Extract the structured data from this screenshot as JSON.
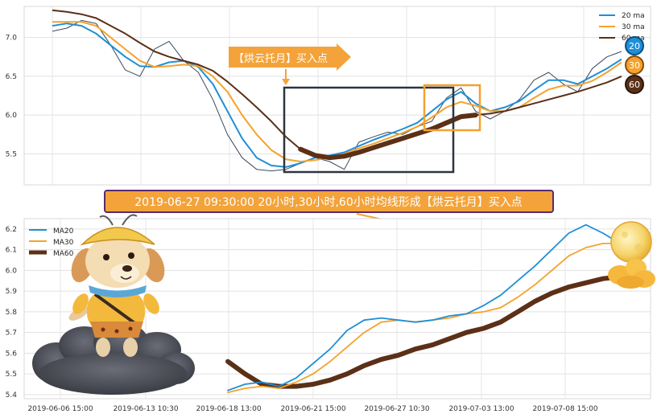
{
  "chart_data": [
    {
      "type": "line",
      "panel": "top",
      "ylim": [
        5.1,
        7.4
      ],
      "y_ticks": [
        "5.5",
        "6.0",
        "6.5",
        "7.0"
      ],
      "grid": true,
      "legend": {
        "placement": "top-right",
        "entries": [
          "20 ma",
          "30 ma",
          "60 ma"
        ]
      },
      "annotation": "【烘云托月】买入点",
      "badges": [
        "20",
        "30",
        "60"
      ],
      "colors": {
        "price": "#3b4a5e",
        "ma20": "#1f8fd6",
        "ma30": "#f4a22d",
        "ma60": "#5b3017",
        "box_dark": "#2e3440",
        "box_orange": "#f4a22d"
      },
      "series": [
        {
          "name": "20 ma",
          "values": [
            7.15,
            7.18,
            7.15,
            7.05,
            6.9,
            6.75,
            6.63,
            6.62,
            6.68,
            6.7,
            6.62,
            6.4,
            6.05,
            5.7,
            5.45,
            5.35,
            5.33,
            5.38,
            5.45,
            5.48,
            5.52,
            5.6,
            5.68,
            5.75,
            5.82,
            5.9,
            6.05,
            6.2,
            6.3,
            6.15,
            6.05,
            6.1,
            6.18,
            6.32,
            6.45,
            6.45,
            6.4,
            6.5,
            6.6,
            6.72
          ]
        },
        {
          "name": "30 ma",
          "values": [
            7.2,
            7.2,
            7.2,
            7.15,
            7.0,
            6.85,
            6.7,
            6.62,
            6.63,
            6.65,
            6.63,
            6.5,
            6.3,
            6.0,
            5.75,
            5.55,
            5.43,
            5.4,
            5.42,
            5.45,
            5.5,
            5.57,
            5.63,
            5.7,
            5.77,
            5.85,
            5.97,
            6.1,
            6.17,
            6.12,
            6.05,
            6.05,
            6.1,
            6.22,
            6.33,
            6.38,
            6.38,
            6.44,
            6.55,
            6.68
          ]
        },
        {
          "name": "60 ma",
          "values": [
            7.35,
            7.33,
            7.3,
            7.25,
            7.15,
            7.05,
            6.93,
            6.82,
            6.75,
            6.7,
            6.65,
            6.57,
            6.43,
            6.27,
            6.1,
            5.92,
            5.72,
            5.56,
            5.48,
            5.45,
            5.47,
            5.52,
            5.58,
            5.64,
            5.7,
            5.76,
            5.82,
            5.9,
            5.98,
            6.0,
            6.02,
            6.05,
            6.1,
            6.15,
            6.2,
            6.25,
            6.3,
            6.36,
            6.42,
            6.5
          ]
        },
        {
          "name": "price",
          "values": [
            7.08,
            7.12,
            7.22,
            7.18,
            6.9,
            6.58,
            6.5,
            6.85,
            6.95,
            6.7,
            6.55,
            6.2,
            5.75,
            5.45,
            5.3,
            5.28,
            5.3,
            5.38,
            5.45,
            5.4,
            5.3,
            5.65,
            5.72,
            5.78,
            5.75,
            5.85,
            5.92,
            6.22,
            6.35,
            6.05,
            5.95,
            6.05,
            6.2,
            6.45,
            6.55,
            6.4,
            6.3,
            6.6,
            6.75,
            6.82
          ]
        }
      ]
    },
    {
      "type": "line",
      "panel": "bottom",
      "ylim": [
        5.38,
        6.25
      ],
      "y_ticks": [
        "5.4",
        "5.5",
        "5.6",
        "5.7",
        "5.8",
        "5.9",
        "6.0",
        "6.1",
        "6.2"
      ],
      "x_ticks": [
        "2019-06-06 15:00",
        "2019-06-13 10:30",
        "2019-06-18 13:00",
        "2019-06-21 15:00",
        "2019-06-27 10:30",
        "2019-07-03 13:00",
        "2019-07-08 15:00"
      ],
      "grid": true,
      "legend": {
        "placement": "top-left",
        "entries": [
          "MA20",
          "MA30",
          "MA60"
        ]
      },
      "title": "2019-06-27 09:30:00 20小时,30小时,60小时均线形成【烘云托月】买入点",
      "colors": {
        "ma20": "#1f8fd6",
        "ma30": "#f4a22d",
        "ma60": "#5b3017"
      },
      "series": [
        {
          "name": "MA20",
          "values": [
            5.42,
            5.45,
            5.46,
            5.44,
            5.48,
            5.55,
            5.62,
            5.71,
            5.76,
            5.77,
            5.76,
            5.75,
            5.76,
            5.78,
            5.79,
            5.83,
            5.88,
            5.95,
            6.02,
            6.1,
            6.18,
            6.22,
            6.18,
            6.13
          ]
        },
        {
          "name": "MA30",
          "values": [
            5.41,
            5.43,
            5.44,
            5.43,
            5.46,
            5.5,
            5.56,
            5.63,
            5.7,
            5.75,
            5.76,
            5.75,
            5.76,
            5.77,
            5.79,
            5.8,
            5.82,
            5.87,
            5.93,
            6.0,
            6.07,
            6.11,
            6.13,
            6.13
          ]
        },
        {
          "name": "MA60",
          "values": [
            5.56,
            5.5,
            5.45,
            5.44,
            5.44,
            5.45,
            5.47,
            5.5,
            5.54,
            5.57,
            5.59,
            5.62,
            5.64,
            5.67,
            5.7,
            5.72,
            5.75,
            5.8,
            5.85,
            5.89,
            5.92,
            5.94,
            5.96,
            5.97
          ]
        }
      ]
    }
  ]
}
